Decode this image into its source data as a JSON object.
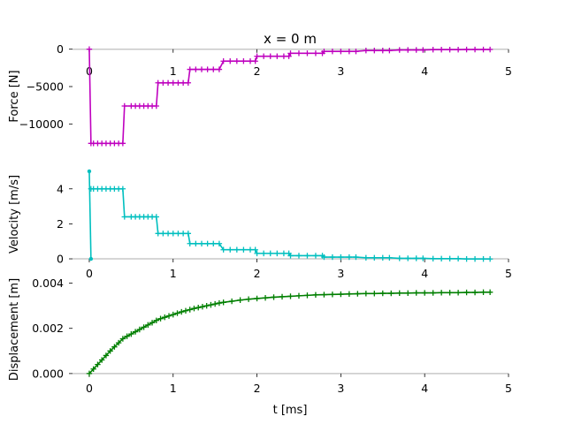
{
  "chart_data": {
    "type": "line",
    "title": "x = 0 m",
    "xlabel": "t [ms]",
    "xlim": [
      -0.2,
      5
    ],
    "xticks": [
      "0",
      "1",
      "2",
      "3",
      "4",
      "5"
    ],
    "grid": false,
    "legend": "none",
    "panels": [
      {
        "id": "force",
        "ylabel": "Force [N]",
        "ylim": [
          -12800,
          200
        ],
        "yticks": [
          {
            "value": 0,
            "label": "0"
          },
          {
            "value": -5000,
            "label": "−5000"
          },
          {
            "value": -10000,
            "label": "−10000"
          }
        ],
        "series": [
          {
            "color": "#bf00bf",
            "marker": "plus",
            "x": [
              0,
              0.02,
              0.05,
              0.1,
              0.15,
              0.2,
              0.25,
              0.3,
              0.35,
              0.4,
              0.42,
              0.5,
              0.55,
              0.6,
              0.65,
              0.7,
              0.75,
              0.8,
              0.82,
              0.88,
              0.94,
              1.0,
              1.06,
              1.12,
              1.18,
              1.2,
              1.27,
              1.34,
              1.41,
              1.48,
              1.55,
              1.6,
              1.68,
              1.76,
              1.84,
              1.92,
              1.98,
              2.0,
              2.08,
              2.16,
              2.24,
              2.32,
              2.38,
              2.4,
              2.5,
              2.6,
              2.7,
              2.78,
              2.8,
              2.9,
              3.0,
              3.1,
              3.18,
              3.3,
              3.4,
              3.5,
              3.58,
              3.7,
              3.8,
              3.9,
              3.98,
              4.1,
              4.2,
              4.3,
              4.4,
              4.5,
              4.6,
              4.7,
              4.78
            ],
            "y": [
              0,
              -12600,
              -12600,
              -12600,
              -12600,
              -12600,
              -12600,
              -12600,
              -12600,
              -12600,
              -7600,
              -7600,
              -7600,
              -7600,
              -7600,
              -7600,
              -7600,
              -7600,
              -4500,
              -4500,
              -4500,
              -4500,
              -4500,
              -4500,
              -4500,
              -2700,
              -2700,
              -2700,
              -2700,
              -2700,
              -2700,
              -1600,
              -1600,
              -1600,
              -1600,
              -1600,
              -1600,
              -950,
              -950,
              -950,
              -950,
              -950,
              -950,
              -550,
              -550,
              -550,
              -550,
              -550,
              -300,
              -300,
              -300,
              -300,
              -300,
              -180,
              -180,
              -180,
              -180,
              -100,
              -100,
              -100,
              -100,
              -60,
              -60,
              -60,
              -60,
              -40,
              -40,
              -40,
              -40
            ]
          }
        ]
      },
      {
        "id": "velocity",
        "ylabel": "Velocity [m/s]",
        "ylim": [
          -0.1,
          5.2
        ],
        "yticks": [
          {
            "value": 4,
            "label": "4"
          },
          {
            "value": 2,
            "label": "2"
          },
          {
            "value": 0,
            "label": "0"
          }
        ],
        "series": [
          {
            "color": "#00bfbf",
            "marker": "dot",
            "x": [
              0,
              0.02
            ],
            "y": [
              5.0,
              0.0
            ]
          },
          {
            "color": "#00bfbf",
            "marker": "plus",
            "x": [
              0.02,
              0.05,
              0.1,
              0.15,
              0.2,
              0.25,
              0.3,
              0.35,
              0.4,
              0.42,
              0.5,
              0.55,
              0.6,
              0.65,
              0.7,
              0.75,
              0.8,
              0.82,
              0.88,
              0.94,
              1.0,
              1.06,
              1.12,
              1.18,
              1.2,
              1.27,
              1.34,
              1.41,
              1.48,
              1.55,
              1.6,
              1.68,
              1.76,
              1.84,
              1.92,
              1.98,
              2.0,
              2.08,
              2.16,
              2.24,
              2.32,
              2.38,
              2.4,
              2.5,
              2.6,
              2.7,
              2.78,
              2.8,
              2.9,
              3.0,
              3.1,
              3.18,
              3.3,
              3.4,
              3.5,
              3.58,
              3.7,
              3.8,
              3.9,
              3.98,
              4.1,
              4.2,
              4.3,
              4.4,
              4.5,
              4.6,
              4.7,
              4.78
            ],
            "y": [
              4.0,
              4.0,
              4.0,
              4.0,
              4.0,
              4.0,
              4.0,
              4.0,
              4.0,
              2.4,
              2.4,
              2.4,
              2.4,
              2.4,
              2.4,
              2.4,
              2.4,
              1.45,
              1.45,
              1.45,
              1.45,
              1.45,
              1.45,
              1.45,
              0.87,
              0.87,
              0.87,
              0.87,
              0.87,
              0.87,
              0.52,
              0.52,
              0.52,
              0.52,
              0.52,
              0.52,
              0.31,
              0.31,
              0.31,
              0.31,
              0.31,
              0.31,
              0.18,
              0.18,
              0.18,
              0.18,
              0.18,
              0.1,
              0.1,
              0.1,
              0.1,
              0.1,
              0.06,
              0.06,
              0.06,
              0.06,
              0.03,
              0.03,
              0.03,
              0.03,
              0.01,
              0.01,
              0.01,
              0.01,
              -0.01,
              -0.01,
              -0.01,
              -0.01
            ]
          }
        ]
      },
      {
        "id": "displacement",
        "ylabel": "Displacement [m]",
        "ylim": [
          -0.0002,
          0.0041
        ],
        "yticks": [
          {
            "value": 0.004,
            "label": "0.004"
          },
          {
            "value": 0.002,
            "label": "0.002"
          },
          {
            "value": 0.0,
            "label": "0.000"
          }
        ],
        "series": [
          {
            "color": "#007f00",
            "marker": "plus",
            "x": [
              0,
              0.05,
              0.1,
              0.15,
              0.2,
              0.25,
              0.3,
              0.35,
              0.4,
              0.45,
              0.5,
              0.55,
              0.6,
              0.65,
              0.7,
              0.75,
              0.8,
              0.85,
              0.9,
              0.95,
              1.0,
              1.05,
              1.1,
              1.15,
              1.2,
              1.25,
              1.3,
              1.35,
              1.4,
              1.45,
              1.5,
              1.55,
              1.6,
              1.7,
              1.8,
              1.9,
              2.0,
              2.1,
              2.2,
              2.3,
              2.4,
              2.5,
              2.6,
              2.7,
              2.8,
              2.9,
              3.0,
              3.1,
              3.2,
              3.3,
              3.4,
              3.5,
              3.6,
              3.7,
              3.8,
              3.9,
              4.0,
              4.1,
              4.2,
              4.3,
              4.4,
              4.5,
              4.6,
              4.7,
              4.78
            ],
            "y": [
              0.0,
              0.0002,
              0.0004,
              0.0006,
              0.0008,
              0.001,
              0.00118,
              0.00136,
              0.00154,
              0.00165,
              0.00175,
              0.00185,
              0.00195,
              0.00205,
              0.00215,
              0.00225,
              0.00235,
              0.00243,
              0.00249,
              0.00255,
              0.00261,
              0.00267,
              0.00273,
              0.00278,
              0.00283,
              0.00288,
              0.00292,
              0.00296,
              0.003,
              0.00304,
              0.00308,
              0.00312,
              0.00315,
              0.0032,
              0.00325,
              0.00329,
              0.00332,
              0.00335,
              0.00338,
              0.0034,
              0.00342,
              0.00344,
              0.00346,
              0.00348,
              0.00349,
              0.0035,
              0.00351,
              0.00352,
              0.00353,
              0.00354,
              0.00354,
              0.00355,
              0.00355,
              0.00356,
              0.00356,
              0.00357,
              0.00357,
              0.00357,
              0.00358,
              0.00358,
              0.00358,
              0.00359,
              0.00359,
              0.0036,
              0.0036
            ]
          }
        ]
      }
    ]
  }
}
